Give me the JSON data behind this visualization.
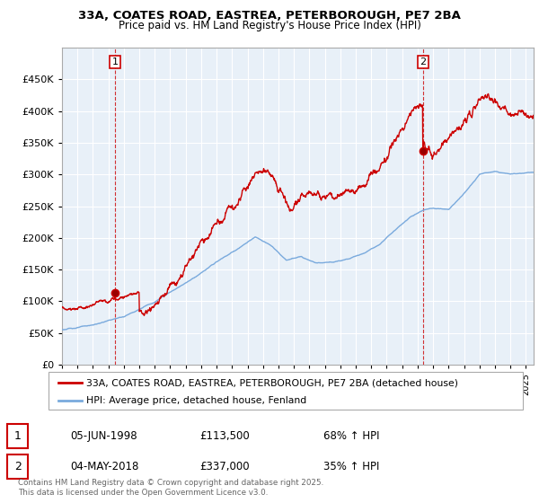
{
  "title_line1": "33A, COATES ROAD, EASTREA, PETERBOROUGH, PE7 2BA",
  "title_line2": "Price paid vs. HM Land Registry's House Price Index (HPI)",
  "legend_label1": "33A, COATES ROAD, EASTREA, PETERBOROUGH, PE7 2BA (detached house)",
  "legend_label2": "HPI: Average price, detached house, Fenland",
  "annotation1_date": "05-JUN-1998",
  "annotation1_price": "£113,500",
  "annotation1_hpi": "68% ↑ HPI",
  "annotation2_date": "04-MAY-2018",
  "annotation2_price": "£337,000",
  "annotation2_hpi": "35% ↑ HPI",
  "footer": "Contains HM Land Registry data © Crown copyright and database right 2025.\nThis data is licensed under the Open Government Licence v3.0.",
  "line1_color": "#cc0000",
  "line2_color": "#7aaadd",
  "purchase1_year": 1998.43,
  "purchase2_year": 2018.34,
  "purchase1_price": 113500,
  "purchase2_price": 337000,
  "ylim_max": 500000,
  "chart_bg": "#e8f0f8",
  "background_color": "#ffffff",
  "grid_color": "#ffffff"
}
